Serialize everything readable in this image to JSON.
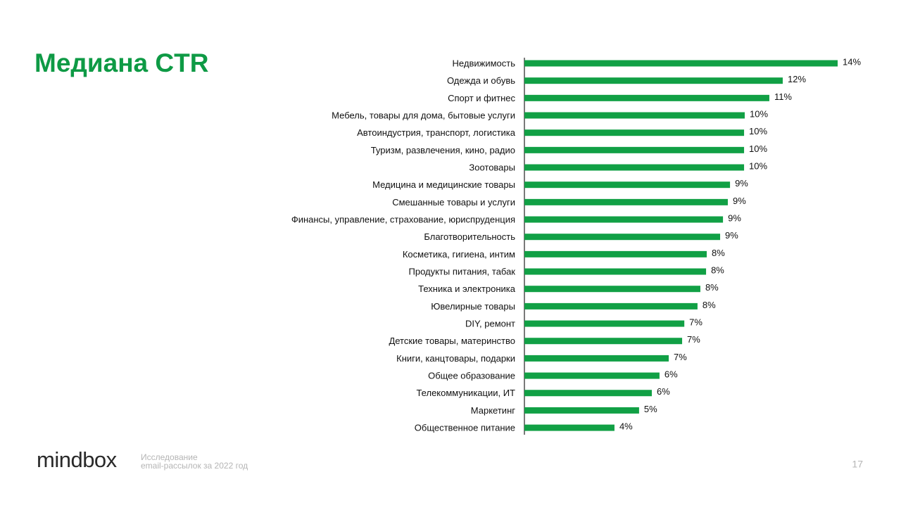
{
  "header": {
    "title": "Медиана CTR"
  },
  "footer": {
    "logo": "mindbox",
    "caption": [
      "Исследование",
      "email-рассылок за 2022 год"
    ],
    "page": "17"
  },
  "chart_data": {
    "type": "bar",
    "orientation": "horizontal",
    "color": "#11a045",
    "categories": [
      "Недвижимость",
      "Одежда и обувь",
      "Спорт и фитнес",
      "Мебель, товары для дома, бытовые услуги",
      "Автоиндустрия, транспорт, логистика",
      "Туризм, развлечения, кино, радио",
      "Зоотовары",
      "Медицина и медицинские товары",
      "Смешанные товары и услуги",
      "Финансы, управление, страхование, юриспруденция",
      "Благотворительность",
      "Косметика, гигиена, интим",
      "Продукты питания, табак",
      "Техника и электроника",
      "Ювелирные товары",
      "DIY, ремонт",
      "Детские товары, материнство",
      "Книги, канцтовары, подарки",
      "Общее образование",
      "Телекоммуникации, ИТ",
      "Маркетинг",
      "Общественное питание"
    ],
    "values": [
      14.26,
      11.76,
      11.15,
      10.03,
      10.0,
      10.0,
      10.0,
      9.36,
      9.26,
      9.04,
      8.91,
      8.3,
      8.27,
      8.01,
      7.88,
      7.28,
      7.18,
      6.57,
      6.15,
      5.8,
      5.22,
      4.1
    ],
    "value_labels": [
      "14%",
      "12%",
      "11%",
      "10%",
      "10%",
      "10%",
      "10%",
      "9%",
      "9%",
      "9%",
      "9%",
      "8%",
      "8%",
      "8%",
      "8%",
      "7%",
      "7%",
      "7%",
      "6%",
      "6%",
      "5%",
      "4%"
    ]
  }
}
